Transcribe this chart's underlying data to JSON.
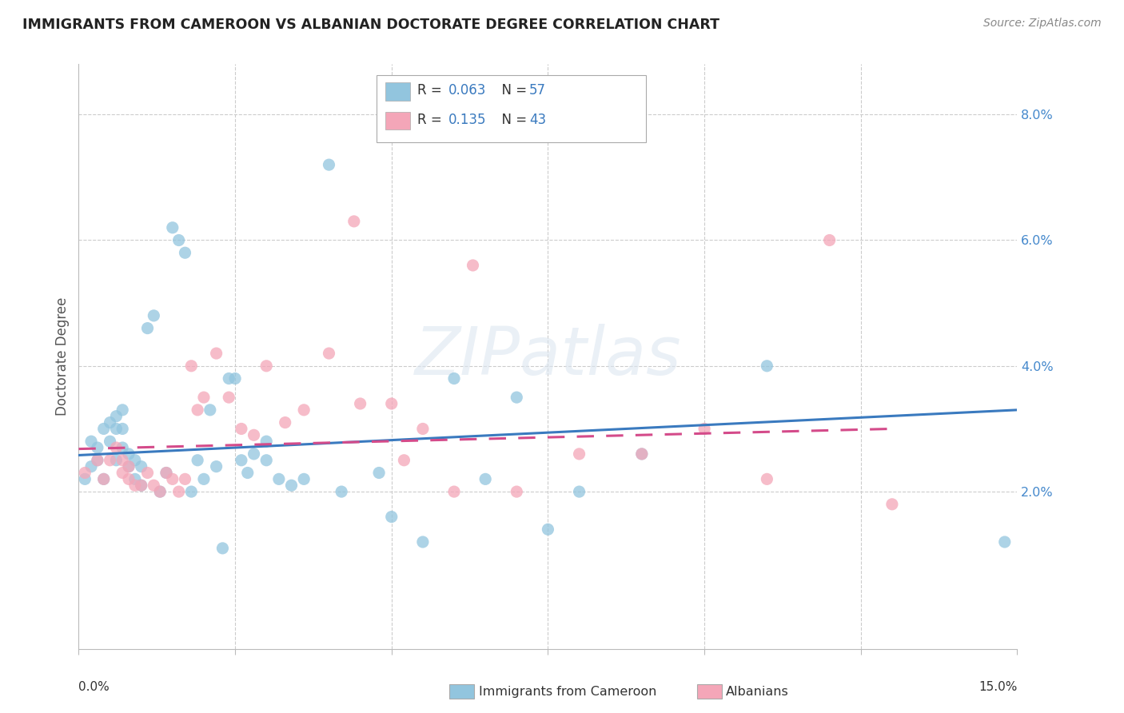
{
  "title": "IMMIGRANTS FROM CAMEROON VS ALBANIAN DOCTORATE DEGREE CORRELATION CHART",
  "source": "Source: ZipAtlas.com",
  "ylabel": "Doctorate Degree",
  "ytick_labels": [
    "2.0%",
    "4.0%",
    "6.0%",
    "8.0%"
  ],
  "ytick_values": [
    0.02,
    0.04,
    0.06,
    0.08
  ],
  "xtick_values": [
    0.0,
    0.025,
    0.05,
    0.075,
    0.1,
    0.125,
    0.15
  ],
  "xlim": [
    0.0,
    0.15
  ],
  "ylim": [
    -0.005,
    0.088
  ],
  "legend1_r": "0.063",
  "legend1_n": "57",
  "legend2_r": "0.135",
  "legend2_n": "43",
  "color_blue": "#92c5de",
  "color_pink": "#f4a6b8",
  "color_blue_line": "#3a7abf",
  "color_pink_line": "#d44b8a",
  "watermark": "ZIPatlas",
  "blue_scatter_x": [
    0.001,
    0.002,
    0.002,
    0.003,
    0.003,
    0.004,
    0.004,
    0.005,
    0.005,
    0.006,
    0.006,
    0.006,
    0.007,
    0.007,
    0.007,
    0.008,
    0.008,
    0.009,
    0.009,
    0.01,
    0.01,
    0.011,
    0.012,
    0.013,
    0.014,
    0.015,
    0.016,
    0.017,
    0.018,
    0.019,
    0.02,
    0.021,
    0.022,
    0.023,
    0.024,
    0.025,
    0.026,
    0.027,
    0.028,
    0.03,
    0.03,
    0.032,
    0.034,
    0.036,
    0.04,
    0.042,
    0.048,
    0.05,
    0.055,
    0.06,
    0.065,
    0.07,
    0.075,
    0.08,
    0.09,
    0.11,
    0.148
  ],
  "blue_scatter_y": [
    0.022,
    0.024,
    0.028,
    0.025,
    0.027,
    0.022,
    0.03,
    0.031,
    0.028,
    0.025,
    0.03,
    0.032,
    0.027,
    0.03,
    0.033,
    0.026,
    0.024,
    0.022,
    0.025,
    0.021,
    0.024,
    0.046,
    0.048,
    0.02,
    0.023,
    0.062,
    0.06,
    0.058,
    0.02,
    0.025,
    0.022,
    0.033,
    0.024,
    0.011,
    0.038,
    0.038,
    0.025,
    0.023,
    0.026,
    0.025,
    0.028,
    0.022,
    0.021,
    0.022,
    0.072,
    0.02,
    0.023,
    0.016,
    0.012,
    0.038,
    0.022,
    0.035,
    0.014,
    0.02,
    0.026,
    0.04,
    0.012
  ],
  "pink_scatter_x": [
    0.001,
    0.003,
    0.004,
    0.005,
    0.006,
    0.007,
    0.007,
    0.008,
    0.008,
    0.009,
    0.01,
    0.011,
    0.012,
    0.013,
    0.014,
    0.015,
    0.016,
    0.017,
    0.018,
    0.019,
    0.02,
    0.022,
    0.024,
    0.026,
    0.028,
    0.03,
    0.033,
    0.036,
    0.04,
    0.044,
    0.05,
    0.055,
    0.06,
    0.07,
    0.08,
    0.09,
    0.1,
    0.11,
    0.12,
    0.13,
    0.063,
    0.045,
    0.052
  ],
  "pink_scatter_y": [
    0.023,
    0.025,
    0.022,
    0.025,
    0.027,
    0.023,
    0.025,
    0.022,
    0.024,
    0.021,
    0.021,
    0.023,
    0.021,
    0.02,
    0.023,
    0.022,
    0.02,
    0.022,
    0.04,
    0.033,
    0.035,
    0.042,
    0.035,
    0.03,
    0.029,
    0.04,
    0.031,
    0.033,
    0.042,
    0.063,
    0.034,
    0.03,
    0.02,
    0.02,
    0.026,
    0.026,
    0.03,
    0.022,
    0.06,
    0.018,
    0.056,
    0.034,
    0.025
  ],
  "blue_trendline_x": [
    0.0,
    0.15
  ],
  "blue_trendline_y": [
    0.0258,
    0.033
  ],
  "pink_trendline_x": [
    0.0,
    0.13
  ],
  "pink_trendline_y": [
    0.0268,
    0.03
  ]
}
